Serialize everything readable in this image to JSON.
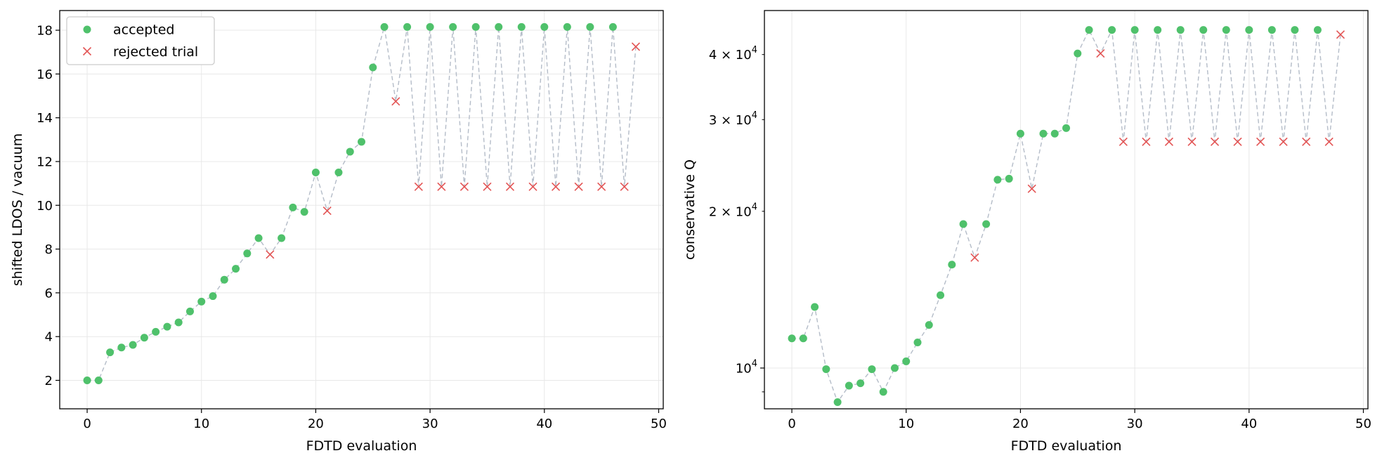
{
  "chart_data": [
    {
      "type": "scatter",
      "xlabel": "FDTD evaluation",
      "ylabel": "shifted LDOS / vacuum",
      "xlim": [
        -2.4,
        50.4
      ],
      "ylim": [
        0.7,
        18.9
      ],
      "xticks": [
        0,
        10,
        20,
        30,
        40,
        50
      ],
      "yticks": [
        2,
        4,
        6,
        8,
        10,
        12,
        14,
        16,
        18
      ],
      "xtick_labels": [
        "0",
        "10",
        "20",
        "30",
        "40",
        "50"
      ],
      "ytick_labels": [
        "2",
        "4",
        "6",
        "8",
        "10",
        "12",
        "14",
        "16",
        "18"
      ],
      "grid": true,
      "legend_position": "top-left",
      "legend": [
        "accepted",
        "rejected trial"
      ],
      "trace_y": [
        2.0,
        2.0,
        3.28,
        3.5,
        3.62,
        3.95,
        4.22,
        4.45,
        4.65,
        5.15,
        5.6,
        5.85,
        6.6,
        7.1,
        7.8,
        8.5,
        7.75,
        8.5,
        9.9,
        9.7,
        11.5,
        9.75,
        11.5,
        12.45,
        12.9,
        16.3,
        18.15,
        14.75,
        18.15,
        10.85,
        18.15,
        10.85,
        18.15,
        10.85,
        18.15,
        10.85,
        18.15,
        10.85,
        18.15,
        10.85,
        18.15,
        10.85,
        18.15,
        10.85,
        18.15,
        10.85,
        18.15,
        10.85,
        17.25
      ],
      "series": [
        {
          "name": "accepted",
          "x": [
            0,
            1,
            2,
            3,
            4,
            5,
            6,
            7,
            8,
            9,
            10,
            11,
            12,
            13,
            14,
            15,
            17,
            18,
            19,
            20,
            22,
            23,
            24,
            25,
            26,
            28,
            30,
            32,
            34,
            36,
            38,
            40,
            42,
            44,
            46
          ],
          "y": [
            2.0,
            2.0,
            3.28,
            3.5,
            3.62,
            3.95,
            4.22,
            4.45,
            4.65,
            5.15,
            5.6,
            5.85,
            6.6,
            7.1,
            7.8,
            8.5,
            8.5,
            9.9,
            9.7,
            11.5,
            11.5,
            12.45,
            12.9,
            16.3,
            18.15,
            18.15,
            18.15,
            18.15,
            18.15,
            18.15,
            18.15,
            18.15,
            18.15,
            18.15,
            18.15
          ]
        },
        {
          "name": "rejected trial",
          "x": [
            16,
            21,
            27,
            29,
            31,
            33,
            35,
            37,
            39,
            41,
            43,
            45,
            47,
            48
          ],
          "y": [
            7.75,
            9.75,
            14.75,
            10.85,
            10.85,
            10.85,
            10.85,
            10.85,
            10.85,
            10.85,
            10.85,
            10.85,
            10.85,
            17.25
          ]
        }
      ]
    },
    {
      "type": "scatter",
      "xlabel": "FDTD evaluation",
      "ylabel": "conservative Q",
      "yscale": "log",
      "xlim": [
        -2.4,
        50.4
      ],
      "ylim": [
        8350,
        48600
      ],
      "xticks": [
        0,
        10,
        20,
        30,
        40,
        50
      ],
      "xtick_labels": [
        "0",
        "10",
        "20",
        "30",
        "40",
        "50"
      ],
      "yticks_major": [
        10000
      ],
      "yticks_major_labels": [
        {
          "mantissa": "10",
          "exponent": "4"
        }
      ],
      "yticks_minor": [
        9000,
        20000,
        30000,
        40000
      ],
      "yticks_minor_labels": [
        {
          "value": 9000,
          "mantissa": "",
          "exponent": ""
        },
        {
          "value": 20000,
          "mantissa": "2 × 10",
          "exponent": "4"
        },
        {
          "value": 30000,
          "mantissa": "3 × 10",
          "exponent": "4"
        },
        {
          "value": 40000,
          "mantissa": "4 × 10",
          "exponent": "4"
        }
      ],
      "grid": true,
      "trace_y": [
        11400,
        11400,
        13100,
        9950,
        8600,
        9250,
        9350,
        9950,
        9000,
        10000,
        10300,
        11200,
        12100,
        13800,
        15800,
        18900,
        16300,
        18900,
        23000,
        23100,
        28200,
        22100,
        28200,
        28200,
        28900,
        40200,
        44600,
        40200,
        44600,
        27200,
        44600,
        27200,
        44600,
        27200,
        44600,
        27200,
        44600,
        27200,
        44600,
        27200,
        44600,
        27200,
        44600,
        27200,
        44600,
        27200,
        44600,
        27200,
        43700
      ],
      "series": [
        {
          "name": "accepted",
          "x": [
            0,
            1,
            2,
            3,
            4,
            5,
            6,
            7,
            8,
            9,
            10,
            11,
            12,
            13,
            14,
            15,
            17,
            18,
            19,
            20,
            22,
            23,
            24,
            25,
            26,
            28,
            30,
            32,
            34,
            36,
            38,
            40,
            42,
            44,
            46
          ],
          "y": [
            11400,
            11400,
            13100,
            9950,
            8600,
            9250,
            9350,
            9950,
            9000,
            10000,
            10300,
            11200,
            12100,
            13800,
            15800,
            18900,
            18900,
            23000,
            23100,
            28200,
            28200,
            28200,
            28900,
            40200,
            44600,
            44600,
            44600,
            44600,
            44600,
            44600,
            44600,
            44600,
            44600,
            44600,
            44600
          ]
        },
        {
          "name": "rejected trial",
          "x": [
            16,
            21,
            27,
            29,
            31,
            33,
            35,
            37,
            39,
            41,
            43,
            45,
            47,
            48
          ],
          "y": [
            16300,
            22100,
            40200,
            27200,
            27200,
            27200,
            27200,
            27200,
            27200,
            27200,
            27200,
            27200,
            27200,
            43700
          ]
        }
      ]
    }
  ],
  "colors": {
    "accepted": "#4fc16b",
    "rejected": "#e35454",
    "trace": "#b4bcc8",
    "grid": "#e8e8e8",
    "axis": "#000000"
  }
}
